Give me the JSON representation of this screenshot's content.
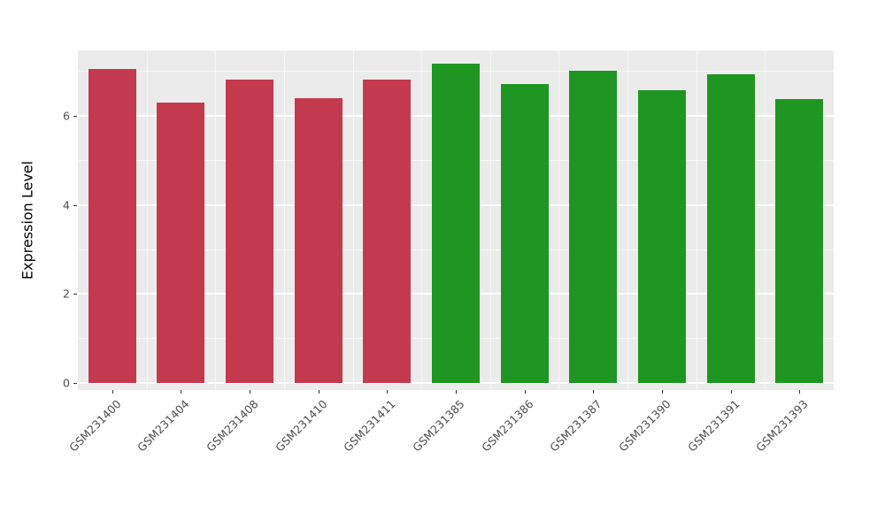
{
  "chart_data": {
    "type": "bar",
    "title": "",
    "xlabel": "",
    "ylabel": "Expression Level",
    "ylim": [
      0,
      7.47
    ],
    "yticks": [
      0,
      2,
      4,
      6
    ],
    "yticks_minor": [
      1,
      3,
      5,
      7
    ],
    "grid": true,
    "legend_position": "none",
    "panel_bg": "#EBEBEB",
    "grid_color": "#FFFFFF",
    "categories": [
      "GSM231400",
      "GSM231404",
      "GSM231408",
      "GSM231410",
      "GSM231411",
      "GSM231385",
      "GSM231386",
      "GSM231387",
      "GSM231390",
      "GSM231391",
      "GSM231393"
    ],
    "values": [
      7.05,
      6.3,
      6.82,
      6.4,
      6.82,
      7.18,
      6.72,
      7.02,
      6.58,
      6.94,
      6.38
    ],
    "bar_colors": [
      "#C33A4E",
      "#C33A4E",
      "#C33A4E",
      "#C33A4E",
      "#C33A4E",
      "#1F9621",
      "#1F9621",
      "#1F9621",
      "#1F9621",
      "#1F9621",
      "#1F9621"
    ],
    "group_colors": {
      "group1": "#C33A4E",
      "group2": "#1F9621"
    }
  }
}
